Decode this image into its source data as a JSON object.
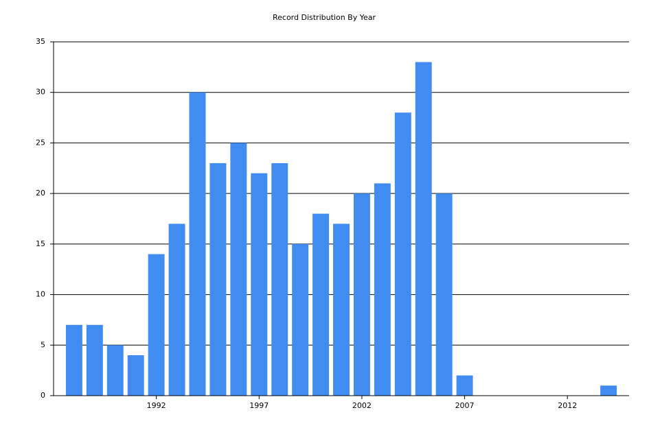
{
  "chart_data": {
    "type": "bar",
    "title": "Record Distribution By Year",
    "x": [
      1988,
      1989,
      1990,
      1991,
      1992,
      1993,
      1994,
      1995,
      1996,
      1997,
      1998,
      1999,
      2000,
      2001,
      2002,
      2003,
      2004,
      2005,
      2006,
      2007,
      2014
    ],
    "values": [
      7,
      7,
      5,
      4,
      14,
      17,
      30,
      23,
      25,
      22,
      23,
      15,
      18,
      17,
      20,
      21,
      28,
      33,
      20,
      2,
      1
    ],
    "color": "#418cf0",
    "xlim": [
      1987,
      2015
    ],
    "xticks": [
      1992,
      1997,
      2002,
      2007,
      2012
    ],
    "ylim": [
      0,
      35
    ],
    "yticks": [
      0,
      5,
      10,
      15,
      20,
      25,
      30,
      35
    ],
    "grid": true
  }
}
